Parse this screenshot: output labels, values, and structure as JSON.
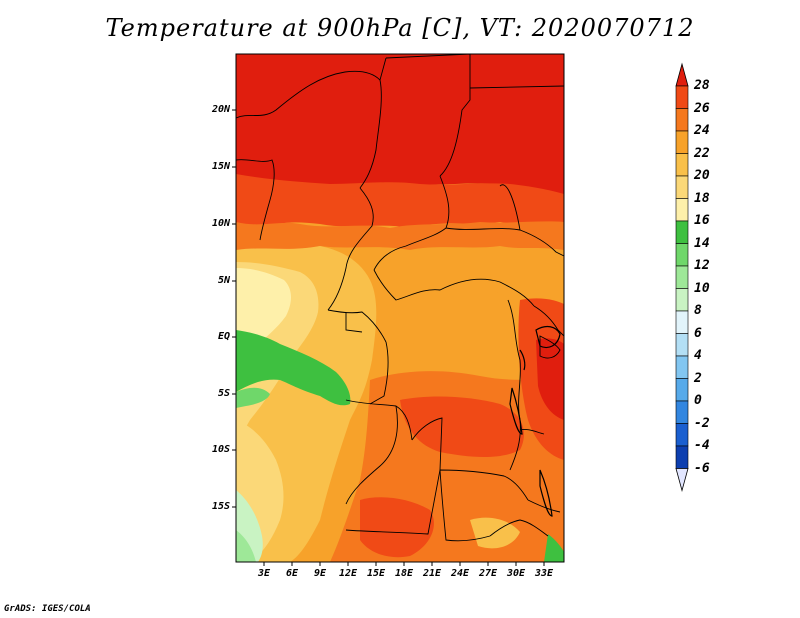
{
  "title": "Temperature at 900hPa [C], VT: 2020070712",
  "footer": "GrADS: IGES/COLA",
  "map": {
    "lat_labels": [
      "20N",
      "15N",
      "10N",
      "5N",
      "EQ",
      "5S",
      "10S",
      "15S"
    ],
    "lon_labels": [
      "3E",
      "6E",
      "9E",
      "12E",
      "15E",
      "18E",
      "21E",
      "24E",
      "27E",
      "30E",
      "33E"
    ]
  },
  "colorbar": {
    "levels": [
      "28",
      "26",
      "24",
      "22",
      "20",
      "18",
      "16",
      "14",
      "12",
      "10",
      "8",
      "6",
      "4",
      "2",
      "0",
      "-2",
      "-4",
      "-6"
    ],
    "colors": [
      "#e01e0e",
      "#f04a16",
      "#f5781e",
      "#f7a22a",
      "#f9c04a",
      "#fbd878",
      "#fef0aa",
      "#3ec040",
      "#6fd76a",
      "#9ee898",
      "#c9f3c3",
      "#e2f4fb",
      "#b3dff5",
      "#82c6f1",
      "#57aaea",
      "#3286e0",
      "#1a5fd0",
      "#0d3fb0",
      "#0a1f78"
    ],
    "upper_arrow_color": "#e01e0e",
    "lower_arrow_color": "#e2e6ff"
  }
}
